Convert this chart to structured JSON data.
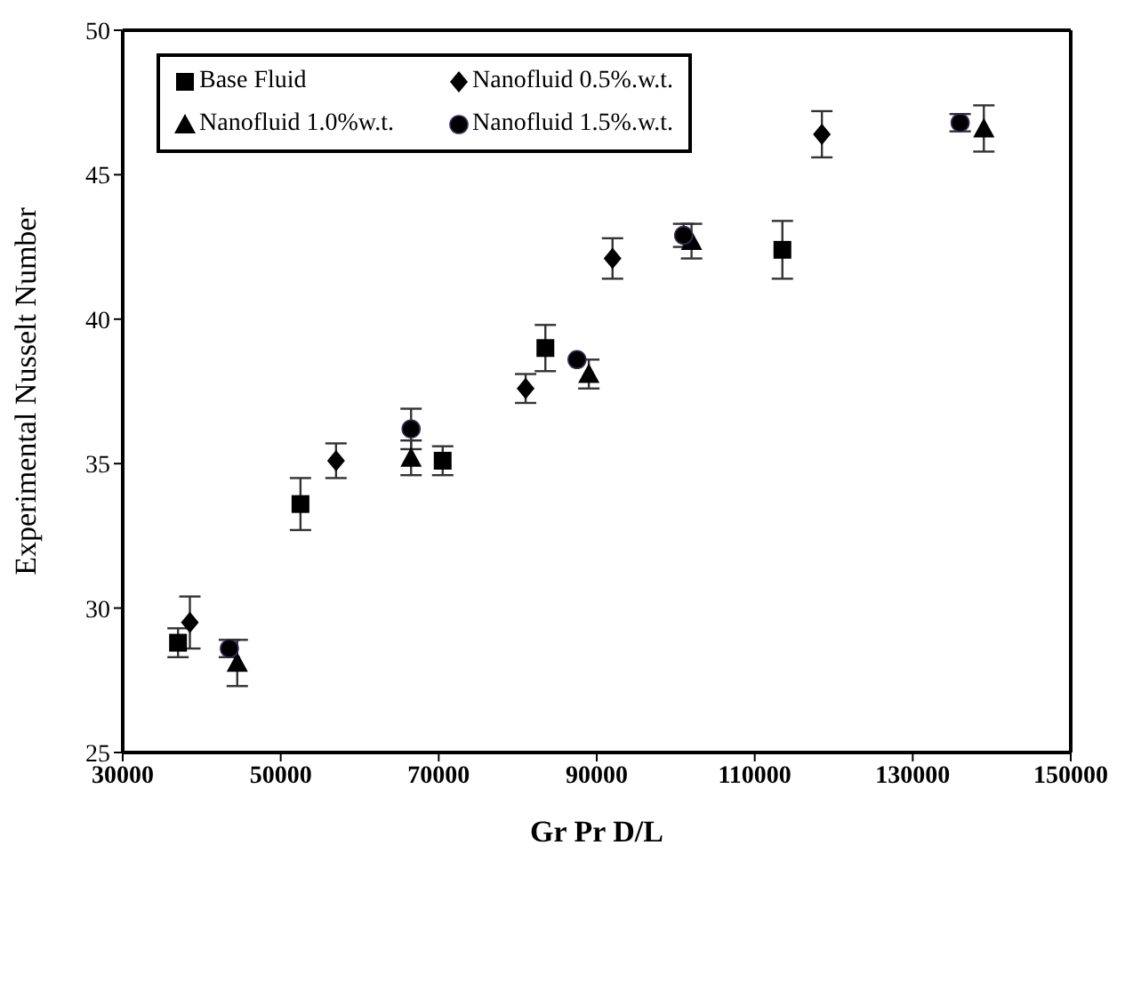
{
  "chart_data": {
    "type": "scatter",
    "xlabel": "Gr Pr D/L",
    "ylabel": "Experimental Nusselt Number",
    "xlim": [
      30000,
      150000
    ],
    "xticks": [
      30000,
      50000,
      70000,
      90000,
      110000,
      130000,
      150000
    ],
    "ylim": [
      25,
      50
    ],
    "yticks": [
      25,
      30,
      35,
      40,
      45,
      50
    ],
    "grid": false,
    "legend": "top left",
    "series": [
      {
        "name": "Base Fluid",
        "color": "#000000",
        "marker": "square",
        "x": [
          37000,
          52500,
          70500,
          83500,
          113500
        ],
        "values": [
          28.8,
          33.6,
          35.1,
          39.0,
          42.4
        ],
        "errors": [
          0.5,
          0.9,
          0.5,
          0.8,
          1.0
        ]
      },
      {
        "name": "Nanofluid 0.5%.w.t.",
        "color": "#000000",
        "marker": "diamond",
        "x": [
          38500,
          57000,
          81000,
          92000,
          118500
        ],
        "values": [
          29.5,
          35.1,
          37.6,
          42.1,
          46.4
        ],
        "errors": [
          0.9,
          0.6,
          0.5,
          0.7,
          0.8
        ]
      },
      {
        "name": "Nanofluid 1.0%w.t.",
        "color": "#000000",
        "marker": "triangle",
        "x": [
          44500,
          66500,
          89000,
          102000,
          139000
        ],
        "values": [
          28.1,
          35.2,
          38.1,
          42.7,
          46.6
        ],
        "errors": [
          0.8,
          0.6,
          0.5,
          0.6,
          0.8
        ]
      },
      {
        "name": "Nanofluid 1.5%.w.t.",
        "color": "#000000",
        "marker": "circle",
        "x": [
          43500,
          66500,
          87500,
          101000,
          136000
        ],
        "values": [
          28.6,
          36.2,
          38.6,
          42.9,
          46.8
        ],
        "errors": [
          0.3,
          0.7,
          null,
          0.4,
          0.3
        ]
      }
    ]
  }
}
